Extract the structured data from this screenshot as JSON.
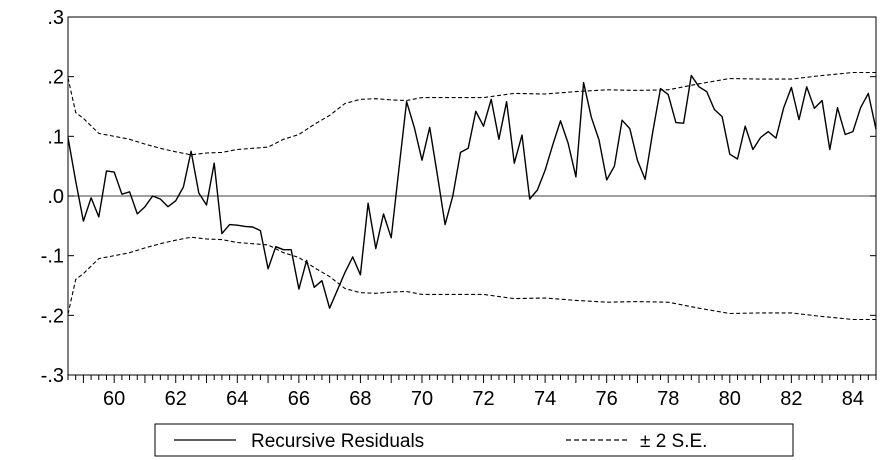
{
  "chart_data": {
    "type": "line",
    "title": "",
    "xlabel": "",
    "ylabel": "",
    "xlim": [
      58.5,
      84.75
    ],
    "ylim": [
      -0.3,
      0.3
    ],
    "x_ticks": [
      60,
      62,
      64,
      66,
      68,
      70,
      72,
      74,
      76,
      78,
      80,
      82,
      84
    ],
    "x_tick_labels": [
      "60",
      "62",
      "64",
      "66",
      "68",
      "70",
      "72",
      "74",
      "76",
      "78",
      "80",
      "82",
      "84"
    ],
    "y_ticks": [
      -0.3,
      -0.2,
      -0.1,
      0.0,
      0.1,
      0.2,
      0.3
    ],
    "y_tick_labels": [
      "-.3",
      "-.2",
      "-.1",
      ".0",
      ".1",
      ".2",
      ".3"
    ],
    "zero_line": true,
    "grid": false,
    "legend_position": "bottom",
    "series": [
      {
        "name": "Recursive Residuals",
        "style": "solid",
        "color": "#000000",
        "x": [
          58.5,
          58.75,
          59.0,
          59.25,
          59.5,
          59.75,
          60.0,
          60.25,
          60.5,
          60.75,
          61.0,
          61.25,
          61.5,
          61.75,
          62.0,
          62.25,
          62.5,
          62.75,
          63.0,
          63.25,
          63.5,
          63.75,
          64.0,
          64.25,
          64.5,
          64.75,
          65.0,
          65.25,
          65.5,
          65.75,
          66.0,
          66.25,
          66.5,
          66.75,
          67.0,
          67.25,
          67.5,
          67.75,
          68.0,
          68.25,
          68.5,
          68.75,
          69.0,
          69.25,
          69.5,
          69.75,
          70.0,
          70.25,
          70.5,
          70.75,
          71.0,
          71.25,
          71.5,
          71.75,
          72.0,
          72.25,
          72.5,
          72.75,
          73.0,
          73.25,
          73.5,
          73.75,
          74.0,
          74.25,
          74.5,
          74.75,
          75.0,
          75.25,
          75.5,
          75.75,
          76.0,
          76.25,
          76.5,
          76.75,
          77.0,
          77.25,
          77.5,
          77.75,
          78.0,
          78.25,
          78.5,
          78.75,
          79.0,
          79.25,
          79.5,
          79.75,
          80.0,
          80.25,
          80.5,
          80.75,
          81.0,
          81.25,
          81.5,
          81.75,
          82.0,
          82.25,
          82.5,
          82.75,
          83.0,
          83.25,
          83.5,
          83.75,
          84.0,
          84.25,
          84.5,
          84.75
        ],
        "values": [
          0.098,
          0.025,
          -0.042,
          -0.003,
          -0.035,
          0.042,
          0.04,
          0.003,
          0.007,
          -0.03,
          -0.018,
          0.0,
          -0.005,
          -0.018,
          -0.008,
          0.015,
          0.075,
          0.005,
          -0.015,
          0.055,
          -0.063,
          -0.048,
          -0.049,
          -0.051,
          -0.052,
          -0.058,
          -0.122,
          -0.085,
          -0.09,
          -0.09,
          -0.156,
          -0.108,
          -0.153,
          -0.142,
          -0.188,
          -0.158,
          -0.128,
          -0.102,
          -0.132,
          -0.012,
          -0.088,
          -0.03,
          -0.07,
          0.045,
          0.158,
          0.115,
          0.06,
          0.115,
          0.035,
          -0.048,
          0.0,
          0.073,
          0.08,
          0.142,
          0.117,
          0.162,
          0.095,
          0.158,
          0.055,
          0.102,
          -0.005,
          0.01,
          0.043,
          0.086,
          0.126,
          0.088,
          0.032,
          0.19,
          0.132,
          0.094,
          0.027,
          0.05,
          0.127,
          0.113,
          0.06,
          0.028,
          0.108,
          0.18,
          0.17,
          0.123,
          0.122,
          0.202,
          0.183,
          0.175,
          0.145,
          0.133,
          0.07,
          0.062,
          0.117,
          0.078,
          0.098,
          0.108,
          0.097,
          0.148,
          0.182,
          0.128,
          0.183,
          0.147,
          0.16,
          0.078,
          0.148,
          0.103,
          0.108,
          0.148,
          0.172,
          0.112
        ]
      },
      {
        "name": "± 2 S.E.",
        "style": "dashed",
        "color": "#000000",
        "x": [
          58.5,
          58.75,
          59.0,
          59.5,
          60.0,
          60.5,
          61.0,
          61.5,
          62.0,
          62.5,
          63.0,
          63.5,
          64.0,
          64.5,
          65.0,
          65.5,
          66.0,
          66.5,
          67.0,
          67.5,
          68.0,
          68.5,
          69.0,
          69.5,
          70.0,
          71.0,
          72.0,
          73.0,
          74.0,
          75.0,
          76.0,
          77.0,
          78.0,
          79.0,
          80.0,
          81.0,
          82.0,
          83.0,
          84.0,
          84.75
        ],
        "upper": [
          0.198,
          0.14,
          0.13,
          0.105,
          0.1,
          0.095,
          0.087,
          0.08,
          0.074,
          0.069,
          0.072,
          0.073,
          0.078,
          0.08,
          0.082,
          0.095,
          0.103,
          0.12,
          0.135,
          0.155,
          0.162,
          0.163,
          0.161,
          0.16,
          0.165,
          0.165,
          0.165,
          0.172,
          0.171,
          0.175,
          0.178,
          0.177,
          0.178,
          0.188,
          0.197,
          0.196,
          0.196,
          0.202,
          0.207,
          0.207
        ],
        "lower": [
          -0.198,
          -0.14,
          -0.13,
          -0.105,
          -0.1,
          -0.095,
          -0.087,
          -0.08,
          -0.074,
          -0.069,
          -0.072,
          -0.073,
          -0.078,
          -0.08,
          -0.082,
          -0.095,
          -0.103,
          -0.12,
          -0.135,
          -0.155,
          -0.162,
          -0.163,
          -0.161,
          -0.16,
          -0.165,
          -0.165,
          -0.165,
          -0.172,
          -0.171,
          -0.175,
          -0.178,
          -0.177,
          -0.178,
          -0.188,
          -0.197,
          -0.196,
          -0.196,
          -0.202,
          -0.207,
          -0.207
        ]
      }
    ]
  }
}
